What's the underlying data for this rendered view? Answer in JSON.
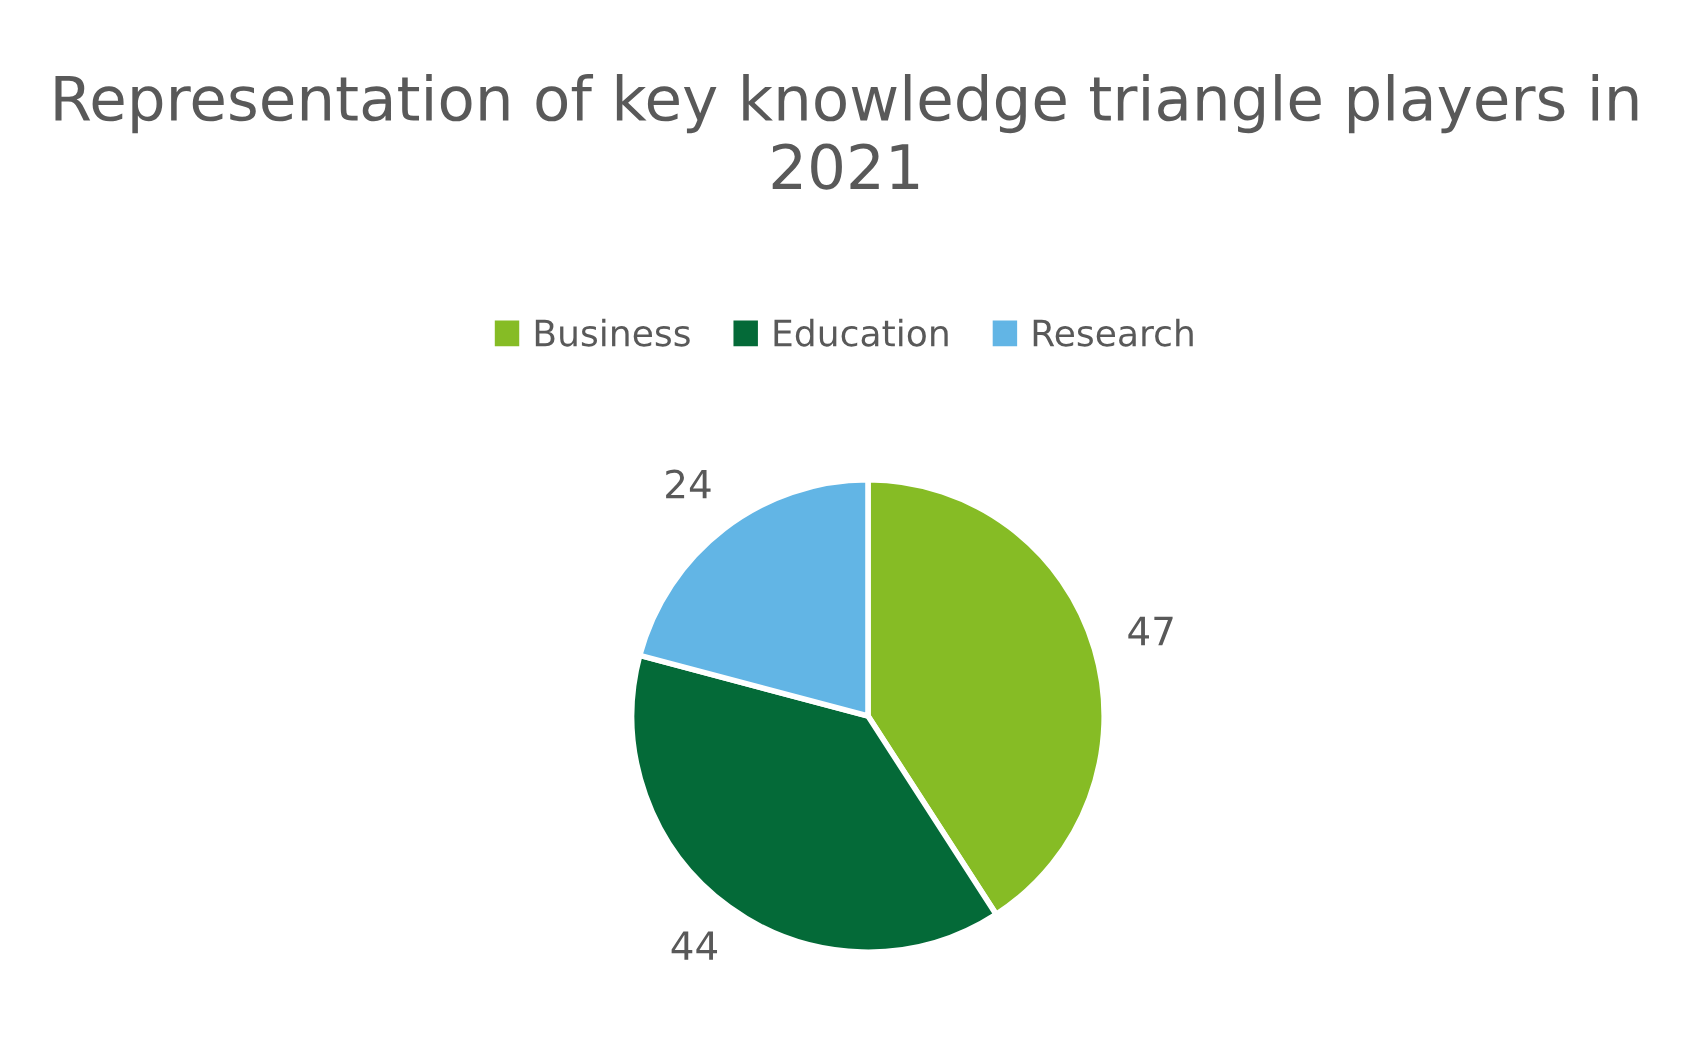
{
  "chart_data": {
    "type": "pie",
    "title": "Representation of key knowledge triangle players in 2021",
    "categories": [
      "Business",
      "Education",
      "Research"
    ],
    "values": [
      47,
      44,
      24
    ],
    "colors": [
      "#86bc25",
      "#046a38",
      "#62b5e5"
    ],
    "legend": "top",
    "data_labels": true
  }
}
